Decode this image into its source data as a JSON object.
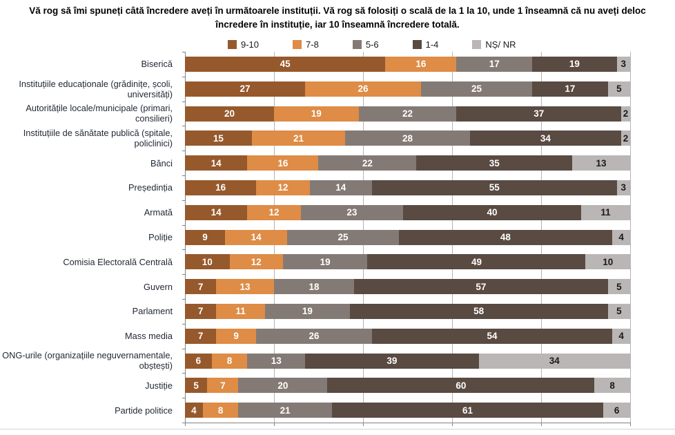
{
  "title": "Vă rog să îmi spuneți câtă încredere aveți în următoarele instituții. Vă rog să folosiți o scală de la 1 la 10, unde 1 înseamnă că nu aveți deloc încredere în instituție, iar 10 înseamnă încredere totală.",
  "colors": {
    "band_9_10": "#96592C",
    "band_7_8": "#DE8C46",
    "band_5_6": "#847A75",
    "band_1_4": "#594A42",
    "band_ns_nr": "#B9B6B5",
    "category_text": "#1F2633",
    "grid": "#B3B3B3",
    "axis": "#808080"
  },
  "chart_data": {
    "type": "bar",
    "orientation": "horizontal",
    "stacked": true,
    "title": "Vă rog să îmi spuneți câtă încredere aveți în următoarele instituții. Vă rog să folosiți o scală de la 1 la 10, unde 1 înseamnă că nu aveți deloc încredere în instituție, iar 10 înseamnă încredere totală.",
    "legend_position": "top",
    "grid": true,
    "xlim": [
      0,
      100
    ],
    "gridline_step": 20,
    "categories": [
      "Biserică",
      "Instituțiile educaționale (grădinițe, școli, universități)",
      "Autoritățile locale/municipale (primari, consilieri)",
      "Instituțiile de sănătate publică (spitale, policlinici)",
      "Bănci",
      "Președinția",
      "Armată",
      "Poliție",
      "Comisia Electorală Centrală",
      "Guvern",
      "Parlament",
      "Mass media",
      "ONG-urile (organizațiile neguvernamentale, obștești)",
      "Justiție",
      "Partide politice"
    ],
    "series": [
      {
        "name": "9-10",
        "color": "#96592C",
        "label_color": "#ffffff",
        "values": [
          45,
          27,
          20,
          15,
          14,
          16,
          14,
          9,
          10,
          7,
          7,
          7,
          6,
          5,
          4
        ]
      },
      {
        "name": "7-8",
        "color": "#DE8C46",
        "label_color": "#ffffff",
        "values": [
          16,
          26,
          19,
          21,
          16,
          12,
          12,
          14,
          12,
          13,
          11,
          9,
          8,
          7,
          8
        ]
      },
      {
        "name": "5-6",
        "color": "#847A75",
        "label_color": "#ffffff",
        "values": [
          17,
          25,
          22,
          28,
          22,
          14,
          23,
          25,
          19,
          18,
          19,
          26,
          13,
          20,
          21
        ]
      },
      {
        "name": "1-4",
        "color": "#594A42",
        "label_color": "#ffffff",
        "values": [
          19,
          17,
          37,
          34,
          35,
          55,
          40,
          48,
          49,
          57,
          58,
          54,
          39,
          60,
          61
        ]
      },
      {
        "name": "NȘ/ NR",
        "color": "#B9B6B5",
        "label_color": "#1a1a1a",
        "values": [
          3,
          5,
          2,
          2,
          13,
          3,
          11,
          4,
          10,
          5,
          5,
          4,
          34,
          8,
          6
        ]
      }
    ]
  }
}
